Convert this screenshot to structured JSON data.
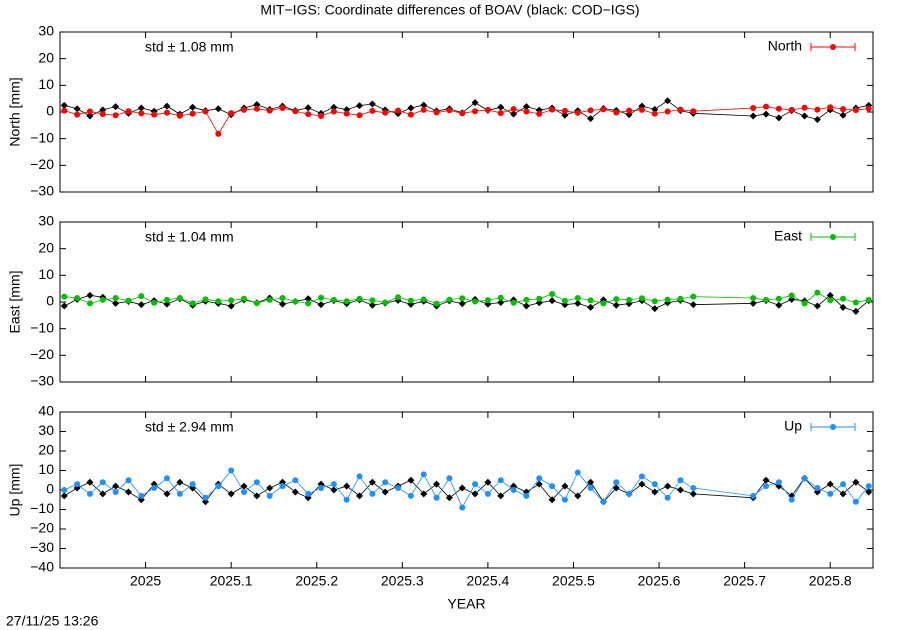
{
  "title": "MIT−IGS: Coordinate differences of BOAV (black: COD−IGS)",
  "timestamp": "27/11/25 13:26",
  "chart_data": [
    {
      "type": "line",
      "ylabel": "North [mm]",
      "annotation": "std ± 1.08 mm",
      "annotation_color": "#ff0000",
      "x": [
        2024.905,
        2024.92,
        2024.935,
        2024.95,
        2024.965,
        2024.98,
        2024.995,
        2025.01,
        2025.025,
        2025.04,
        2025.055,
        2025.07,
        2025.085,
        2025.1,
        2025.115,
        2025.13,
        2025.145,
        2025.16,
        2025.175,
        2025.19,
        2025.205,
        2025.22,
        2025.235,
        2025.25,
        2025.265,
        2025.28,
        2025.295,
        2025.31,
        2025.325,
        2025.34,
        2025.355,
        2025.37,
        2025.385,
        2025.4,
        2025.415,
        2025.43,
        2025.445,
        2025.46,
        2025.475,
        2025.49,
        2025.505,
        2025.52,
        2025.535,
        2025.55,
        2025.565,
        2025.58,
        2025.595,
        2025.61,
        2025.625,
        2025.64,
        2025.71,
        2025.725,
        2025.74,
        2025.755,
        2025.77,
        2025.785,
        2025.8,
        2025.815,
        2025.83,
        2025.845
      ],
      "series": [
        {
          "color": "#000000",
          "values": [
            2.5,
            1.2,
            -1.5,
            0.8,
            2,
            -0.5,
            1.5,
            0.3,
            2.2,
            -0.8,
            1.8,
            0.5,
            1.2,
            -1,
            1.5,
            2.8,
            1.0,
            2.2,
            0.5,
            1.6,
            -0.5,
            1.8,
            0.9,
            2.4,
            3,
            0.8,
            -0.6,
            1.5,
            2.6,
            0.4,
            1.2,
            -0.3,
            3.5,
            0.6,
            1.8,
            -0.8,
            2.0,
            0.7,
            1.5,
            -1.2,
            0.5,
            -2.5,
            1.3,
            0.6,
            -1.0,
            2.2,
            1.0,
            4.2,
            0.5,
            -0.5,
            -1.5,
            -0.8,
            -2.2,
            0.5,
            -1.5,
            -2.8,
            0.8,
            -1.2,
            1.5,
            2.5
          ]
        },
        {
          "name": "North",
          "color": "#ff0000",
          "values": [
            0.5,
            -1,
            0.2,
            -0.8,
            -1.2,
            0.3,
            -0.5,
            -1,
            -0.3,
            -1.4,
            -0.6,
            0.2,
            -8.2,
            -0.4,
            0.8,
            1.2,
            0.5,
            1.5,
            0.3,
            -0.8,
            -1.5,
            0.2,
            -0.6,
            -1.2,
            0.4,
            -0.3,
            0.5,
            -1,
            0.8,
            -0.2,
            0.6,
            -0.5,
            0.3,
            0.8,
            -0.4,
            1.1,
            0.2,
            -0.7,
            0.9,
            0.4,
            -0.3,
            0.6,
            1.0,
            -0.2,
            0.5,
            0.8,
            -0.6,
            0.2,
            0.9,
            0.3,
            1.5,
            2.0,
            1.2,
            0.8,
            1.6,
            0.9,
            1.8,
            1.1,
            0.7,
            1.3
          ]
        }
      ],
      "xlim": [
        2024.9,
        2025.85
      ],
      "xticks": [
        2025,
        2025.1,
        2025.2,
        2025.3,
        2025.4,
        2025.5,
        2025.6,
        2025.7,
        2025.8
      ],
      "ylim": [
        -30,
        30
      ],
      "yticks": [
        {
          "value": -30,
          "label": "−30"
        },
        {
          "value": -20,
          "label": "−20"
        },
        {
          "value": -10,
          "label": "−10"
        },
        0,
        10,
        20,
        30
      ]
    },
    {
      "type": "line",
      "ylabel": "East [mm]",
      "annotation": "std ± 1.04 mm",
      "annotation_color": "#00c000",
      "x": [
        2024.905,
        2024.92,
        2024.935,
        2024.95,
        2024.965,
        2024.98,
        2024.995,
        2025.01,
        2025.025,
        2025.04,
        2025.055,
        2025.07,
        2025.085,
        2025.1,
        2025.115,
        2025.13,
        2025.145,
        2025.16,
        2025.175,
        2025.19,
        2025.205,
        2025.22,
        2025.235,
        2025.25,
        2025.265,
        2025.28,
        2025.295,
        2025.31,
        2025.325,
        2025.34,
        2025.355,
        2025.37,
        2025.385,
        2025.4,
        2025.415,
        2025.43,
        2025.445,
        2025.46,
        2025.475,
        2025.49,
        2025.505,
        2025.52,
        2025.535,
        2025.55,
        2025.565,
        2025.58,
        2025.595,
        2025.61,
        2025.625,
        2025.64,
        2025.71,
        2025.725,
        2025.74,
        2025.755,
        2025.77,
        2025.785,
        2025.8,
        2025.815,
        2025.83,
        2025.845
      ],
      "series": [
        {
          "color": "#000000",
          "values": [
            -1.5,
            1.0,
            2.5,
            1.8,
            -0.5,
            0.2,
            -1,
            0.5,
            -0.8,
            1.2,
            -1.2,
            0.3,
            -0.5,
            -1.5,
            0.8,
            -0.3,
            1.5,
            -0.8,
            0.2,
            1.2,
            -1.0,
            0.5,
            -0.6,
            0.8,
            -1.2,
            -0.4,
            0.6,
            -0.9,
            0.3,
            -1.5,
            0.4,
            -0.6,
            1.0,
            -0.8,
            -0.2,
            0.8,
            -1.5,
            -0.3,
            0.5,
            -1.0,
            -0.5,
            -2.0,
            0.8,
            -1.2,
            -0.6,
            0.5,
            -2.5,
            -0.3,
            0.6,
            -1.0,
            -0.5,
            0.5,
            -1.2,
            1.0,
            0.4,
            -1.5,
            2.5,
            -2.0,
            -3.5,
            0.5
          ]
        },
        {
          "name": "East",
          "color": "#00c000",
          "values": [
            2,
            1.5,
            -0.5,
            0.8,
            1.5,
            0.5,
            2.2,
            -0.3,
            0.8,
            1.5,
            -0.5,
            1,
            0.3,
            0.6,
            1.2,
            -0.4,
            0.8,
            1.5,
            0.2,
            -0.5,
            1.6,
            0.8,
            0.3,
            1.2,
            0.6,
            -0.2,
            1.8,
            0.5,
            1.0,
            -0.6,
            0.9,
            1.4,
            0.2,
            0.7,
            1.6,
            -0.3,
            0.8,
            1.2,
            3.0,
            0.4,
            1.5,
            0.6,
            -0.5,
            1.1,
            0.8,
            1.4,
            0.3,
            0.9,
            1.2,
            2.0,
            1.5,
            0.8,
            1.2,
            2.5,
            -0.5,
            3.5,
            0.6,
            1.2,
            -0.2,
            0.8
          ]
        }
      ],
      "xlim": [
        2024.9,
        2025.85
      ],
      "xticks": [
        2025,
        2025.1,
        2025.2,
        2025.3,
        2025.4,
        2025.5,
        2025.6,
        2025.7,
        2025.8
      ],
      "ylim": [
        -30,
        30
      ],
      "yticks": [
        {
          "value": -30,
          "label": "−30"
        },
        {
          "value": -20,
          "label": "−20"
        },
        {
          "value": -10,
          "label": "−10"
        },
        0,
        10,
        20,
        30
      ]
    },
    {
      "type": "line",
      "ylabel": "Up [mm]",
      "xlabel": "YEAR",
      "annotation": "std ± 2.94 mm",
      "annotation_color": "#1e90ff",
      "x": [
        2024.905,
        2024.92,
        2024.935,
        2024.95,
        2024.965,
        2024.98,
        2024.995,
        2025.01,
        2025.025,
        2025.04,
        2025.055,
        2025.07,
        2025.085,
        2025.1,
        2025.115,
        2025.13,
        2025.145,
        2025.16,
        2025.175,
        2025.19,
        2025.205,
        2025.22,
        2025.235,
        2025.25,
        2025.265,
        2025.28,
        2025.295,
        2025.31,
        2025.325,
        2025.34,
        2025.355,
        2025.37,
        2025.385,
        2025.4,
        2025.415,
        2025.43,
        2025.445,
        2025.46,
        2025.475,
        2025.49,
        2025.505,
        2025.52,
        2025.535,
        2025.55,
        2025.565,
        2025.58,
        2025.595,
        2025.61,
        2025.625,
        2025.64,
        2025.71,
        2025.725,
        2025.74,
        2025.755,
        2025.77,
        2025.785,
        2025.8,
        2025.815,
        2025.83,
        2025.845
      ],
      "series": [
        {
          "color": "#000000",
          "values": [
            -3,
            1,
            4,
            -2,
            2,
            -1,
            -5,
            3,
            -2,
            4,
            1,
            -6,
            3,
            -2,
            2,
            -3,
            1,
            4,
            -1,
            -4,
            3,
            0,
            2,
            -3,
            4,
            -1,
            2,
            5,
            -2,
            3,
            -4,
            1,
            -2,
            4,
            -3,
            2,
            -1,
            3,
            -5,
            2,
            -3,
            4,
            -6,
            1,
            -2,
            3,
            -1,
            2,
            0,
            -2,
            -4,
            5,
            2,
            -3,
            6,
            -1,
            3,
            -2,
            4,
            -1
          ]
        },
        {
          "name": "Up",
          "color": "#1e90ff",
          "values": [
            0,
            3,
            -2,
            4,
            -1,
            5,
            -3,
            1,
            6,
            -2,
            3,
            -4,
            2,
            10,
            -1,
            4,
            -3,
            2,
            5,
            -2,
            1,
            3,
            -5,
            7,
            -2,
            4,
            1,
            -3,
            8,
            -4,
            6,
            -9,
            3,
            -2,
            5,
            0,
            -3,
            6,
            2,
            -5,
            9,
            1,
            -6,
            4,
            -2,
            7,
            3,
            -4,
            5,
            1,
            -3,
            2,
            4,
            -5,
            6,
            1,
            -2,
            3,
            -6,
            2
          ]
        }
      ],
      "xlim": [
        2024.9,
        2025.85
      ],
      "xticks": [
        2025,
        2025.1,
        2025.2,
        2025.3,
        2025.4,
        2025.5,
        2025.6,
        2025.7,
        2025.8
      ],
      "ylim": [
        -40,
        40
      ],
      "yticks": [
        {
          "value": -40,
          "label": "−40"
        },
        {
          "value": -30,
          "label": "−30"
        },
        {
          "value": -20,
          "label": "−20"
        },
        {
          "value": -10,
          "label": "−10"
        },
        0,
        10,
        20,
        30,
        40
      ]
    }
  ]
}
